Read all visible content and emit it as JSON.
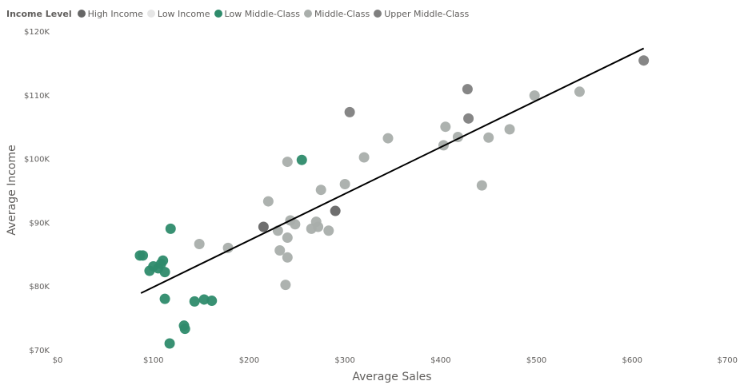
{
  "legend": {
    "title": "Income Level",
    "items": [
      {
        "label": "High Income",
        "color": "#666666"
      },
      {
        "label": "Low Income",
        "color": "#e6e6e6"
      },
      {
        "label": "Low Middle-Class",
        "color": "#2e8b6b"
      },
      {
        "label": "Middle-Class",
        "color": "#a9aeab"
      },
      {
        "label": "Upper Middle-Class",
        "color": "#7f7f7f"
      }
    ]
  },
  "chart_data": {
    "type": "scatter",
    "xlabel": "Average Sales",
    "ylabel": "Average Income",
    "xlim": [
      0,
      700
    ],
    "ylim": [
      70000,
      120000
    ],
    "x_ticks": [
      0,
      100,
      200,
      300,
      400,
      500,
      600,
      700
    ],
    "x_tick_labels": [
      "$0",
      "$100",
      "$200",
      "$300",
      "$400",
      "$500",
      "$600",
      "$700"
    ],
    "y_ticks": [
      70000,
      80000,
      90000,
      100000,
      110000,
      120000
    ],
    "y_tick_labels": [
      "$70K",
      "$80K",
      "$90K",
      "$100K",
      "$110K",
      "$120K"
    ],
    "legend_position": "top-left",
    "grid": false,
    "trend_line": {
      "x": [
        87,
        612
      ],
      "y": [
        78900,
        117300
      ],
      "color": "#000000"
    },
    "series": [
      {
        "name": "High Income",
        "color": "#666666",
        "x": [
          215,
          290
        ],
        "y": [
          89300,
          91800
        ]
      },
      {
        "name": "Low Income",
        "color": "#e6e6e6",
        "x": [],
        "y": []
      },
      {
        "name": "Low Middle-Class",
        "color": "#2e8b6b",
        "x": [
          86,
          89,
          96,
          100,
          105,
          108,
          110,
          112,
          112,
          117,
          118,
          132,
          133,
          143,
          153,
          161,
          255
        ],
        "y": [
          84800,
          84800,
          82400,
          83100,
          82800,
          83500,
          84000,
          82200,
          78000,
          71000,
          89000,
          73800,
          73300,
          77600,
          77900,
          77700,
          99800
        ]
      },
      {
        "name": "Middle-Class",
        "color": "#a9aeab",
        "x": [
          148,
          178,
          220,
          230,
          232,
          238,
          240,
          240,
          240,
          243,
          248,
          265,
          270,
          272,
          275,
          283,
          300,
          320,
          345,
          403,
          405,
          418,
          443,
          450,
          472,
          498,
          545
        ],
        "y": [
          86600,
          86000,
          93300,
          88700,
          85600,
          80200,
          99500,
          87600,
          84500,
          90300,
          89700,
          89000,
          90100,
          89300,
          95100,
          88700,
          96000,
          100200,
          103200,
          102100,
          105000,
          103400,
          95800,
          103300,
          104600,
          109900,
          110500
        ]
      },
      {
        "name": "Upper Middle-Class",
        "color": "#7f7f7f",
        "x": [
          305,
          428,
          429,
          612
        ],
        "y": [
          107300,
          110900,
          106300,
          115400
        ]
      }
    ]
  }
}
